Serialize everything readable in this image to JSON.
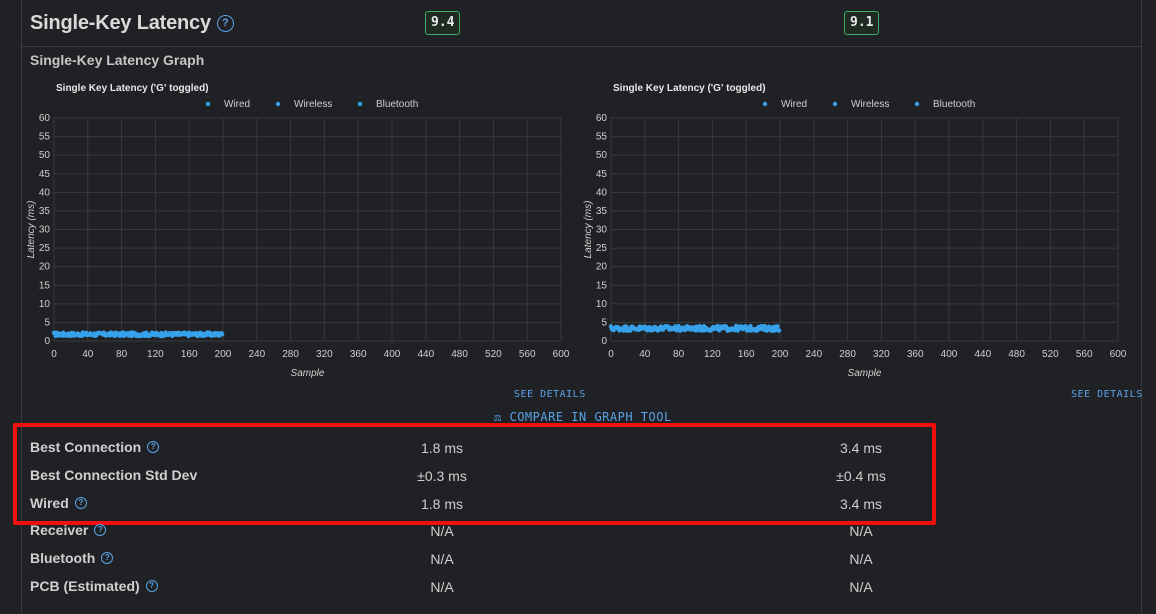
{
  "header": {
    "title": "Single-Key Latency",
    "score_1": "9.4",
    "score_2": "9.1"
  },
  "section_title": "Single-Key Latency Graph",
  "links": {
    "see_details": "SEE DETAILS",
    "compare": "COMPARE IN GRAPH TOOL",
    "compare_icon": "scale-icon"
  },
  "colors": {
    "series": "#36a2eb",
    "link": "#5aa2e8",
    "highlight": "#f00e0e",
    "score_border": "#3fae6a"
  },
  "chart_data": [
    {
      "type": "scatter",
      "title": "Single Key Latency ('G' toggled)",
      "xlabel": "Sample",
      "ylabel": "Latency (ms)",
      "xlim": [
        0,
        600
      ],
      "ylim": [
        0,
        60
      ],
      "xticks": [
        0,
        40,
        80,
        120,
        160,
        200,
        240,
        280,
        320,
        360,
        400,
        440,
        480,
        520,
        560,
        600
      ],
      "yticks": [
        0,
        5,
        10,
        15,
        20,
        25,
        30,
        35,
        40,
        45,
        50,
        55,
        60
      ],
      "legend": [
        "Wired",
        "Wireless",
        "Bluetooth"
      ],
      "grid": true,
      "series": [
        {
          "name": "Wired",
          "mean": 1.8,
          "spread": 0.3,
          "count": 200
        },
        {
          "name": "Wireless",
          "values": []
        },
        {
          "name": "Bluetooth",
          "values": []
        }
      ]
    },
    {
      "type": "scatter",
      "title": "Single Key Latency ('G' toggled)",
      "xlabel": "Sample",
      "ylabel": "Latency (ms)",
      "xlim": [
        0,
        600
      ],
      "ylim": [
        0,
        60
      ],
      "xticks": [
        0,
        40,
        80,
        120,
        160,
        200,
        240,
        280,
        320,
        360,
        400,
        440,
        480,
        520,
        560,
        600
      ],
      "yticks": [
        0,
        5,
        10,
        15,
        20,
        25,
        30,
        35,
        40,
        45,
        50,
        55,
        60
      ],
      "legend": [
        "Wired",
        "Wireless",
        "Bluetooth"
      ],
      "grid": true,
      "series": [
        {
          "name": "Wired",
          "mean": 3.4,
          "spread": 0.4,
          "count": 200
        },
        {
          "name": "Wireless",
          "values": []
        },
        {
          "name": "Bluetooth",
          "values": []
        }
      ]
    }
  ],
  "rows": [
    {
      "label": "Best Connection",
      "help": true,
      "v1": "1.8 ms",
      "v2": "3.4 ms"
    },
    {
      "label": "Best Connection Std Dev",
      "help": false,
      "v1": "±0.3 ms",
      "v2": "±0.4 ms"
    },
    {
      "label": "Wired",
      "help": true,
      "v1": "1.8 ms",
      "v2": "3.4 ms"
    },
    {
      "label": "Receiver",
      "help": true,
      "v1": "N/A",
      "v2": "N/A"
    },
    {
      "label": "Bluetooth",
      "help": true,
      "v1": "N/A",
      "v2": "N/A"
    },
    {
      "label": "PCB (Estimated)",
      "help": true,
      "v1": "N/A",
      "v2": "N/A"
    }
  ]
}
